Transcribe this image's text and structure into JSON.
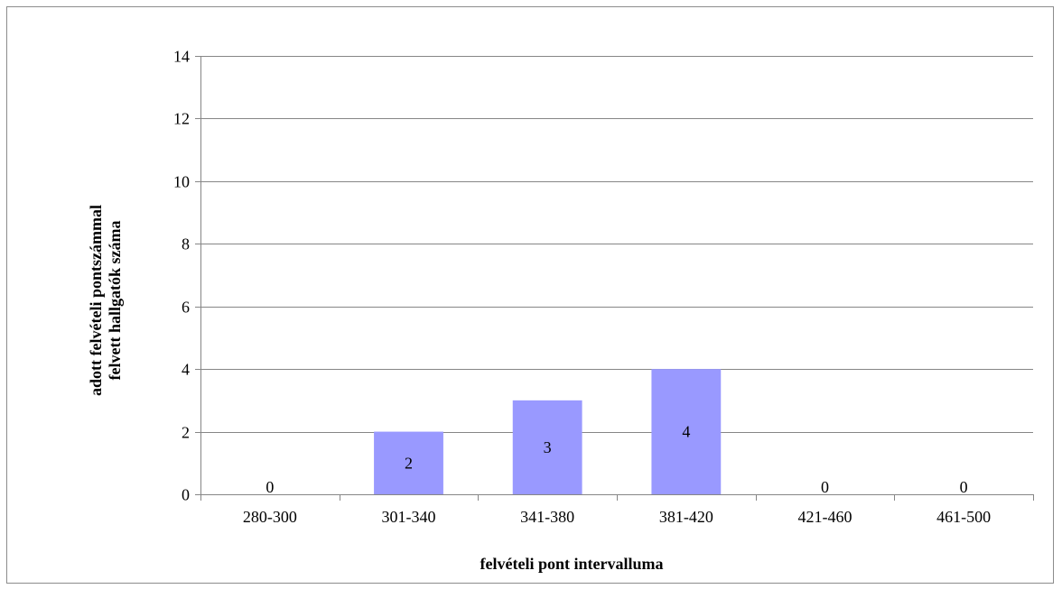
{
  "chart_data": {
    "type": "bar",
    "categories": [
      "280-300",
      "301-340",
      "341-380",
      "381-420",
      "421-460",
      "461-500"
    ],
    "values": [
      0,
      2,
      3,
      4,
      0,
      0
    ],
    "data_labels": [
      "0",
      "2",
      "3",
      "4",
      "0",
      "0"
    ],
    "title": "",
    "xlabel": "felvételi pont intervalluma",
    "ylabel_lines": [
      "adott felvételi pontszámmal",
      "felvett hallgatók száma"
    ],
    "ylim": [
      0,
      14
    ],
    "yticks": [
      0,
      2,
      4,
      6,
      8,
      10,
      12,
      14
    ],
    "ytick_labels": [
      "0",
      "2",
      "4",
      "6",
      "8",
      "10",
      "12",
      "14"
    ],
    "grid": true,
    "legend": "none",
    "colors": {
      "bar": "#9999ff",
      "grid": "#868686",
      "axis": "#868686"
    }
  }
}
